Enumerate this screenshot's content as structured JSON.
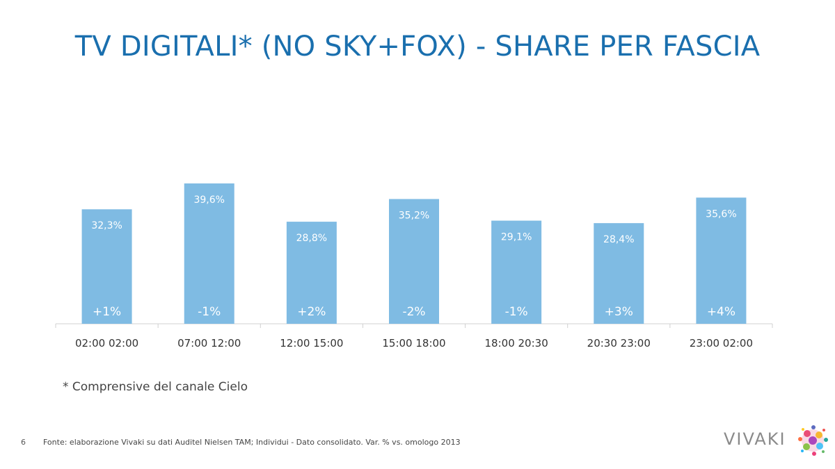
{
  "slide": {
    "title": "TV DIGITALI* (NO SKY+FOX) - SHARE PER FASCIA",
    "footnote": "* Comprensive del canale Cielo",
    "page_number": "6",
    "source": "Fonte: elaborazione Vivaki su dati Auditel Nielsen TAM; Individui - Dato consolidato. Var. % vs. omologo 2013",
    "logo_text": "VIVAKI"
  },
  "colors": {
    "title": "#1a6fae",
    "bar": "#7fbbe3",
    "bar_label": "#ffffff",
    "axis": "#d0d0d0",
    "tick_label": "#333333"
  },
  "chart_data": {
    "type": "bar",
    "title": "",
    "xlabel": "",
    "ylabel": "",
    "ylim": [
      0,
      45
    ],
    "grid": false,
    "categories": [
      "02:00 02:00",
      "07:00 12:00",
      "12:00 15:00",
      "15:00 18:00",
      "18:00 20:30",
      "20:30 23:00",
      "23:00 02:00"
    ],
    "values": [
      32.3,
      39.6,
      28.8,
      35.2,
      29.1,
      28.4,
      35.6
    ],
    "value_labels": [
      "32,3%",
      "39,6%",
      "28,8%",
      "35,2%",
      "29,1%",
      "28,4%",
      "35,6%"
    ],
    "variation_labels": [
      "+1%",
      "-1%",
      "+2%",
      "-2%",
      "-1%",
      "+3%",
      "+4%"
    ]
  }
}
